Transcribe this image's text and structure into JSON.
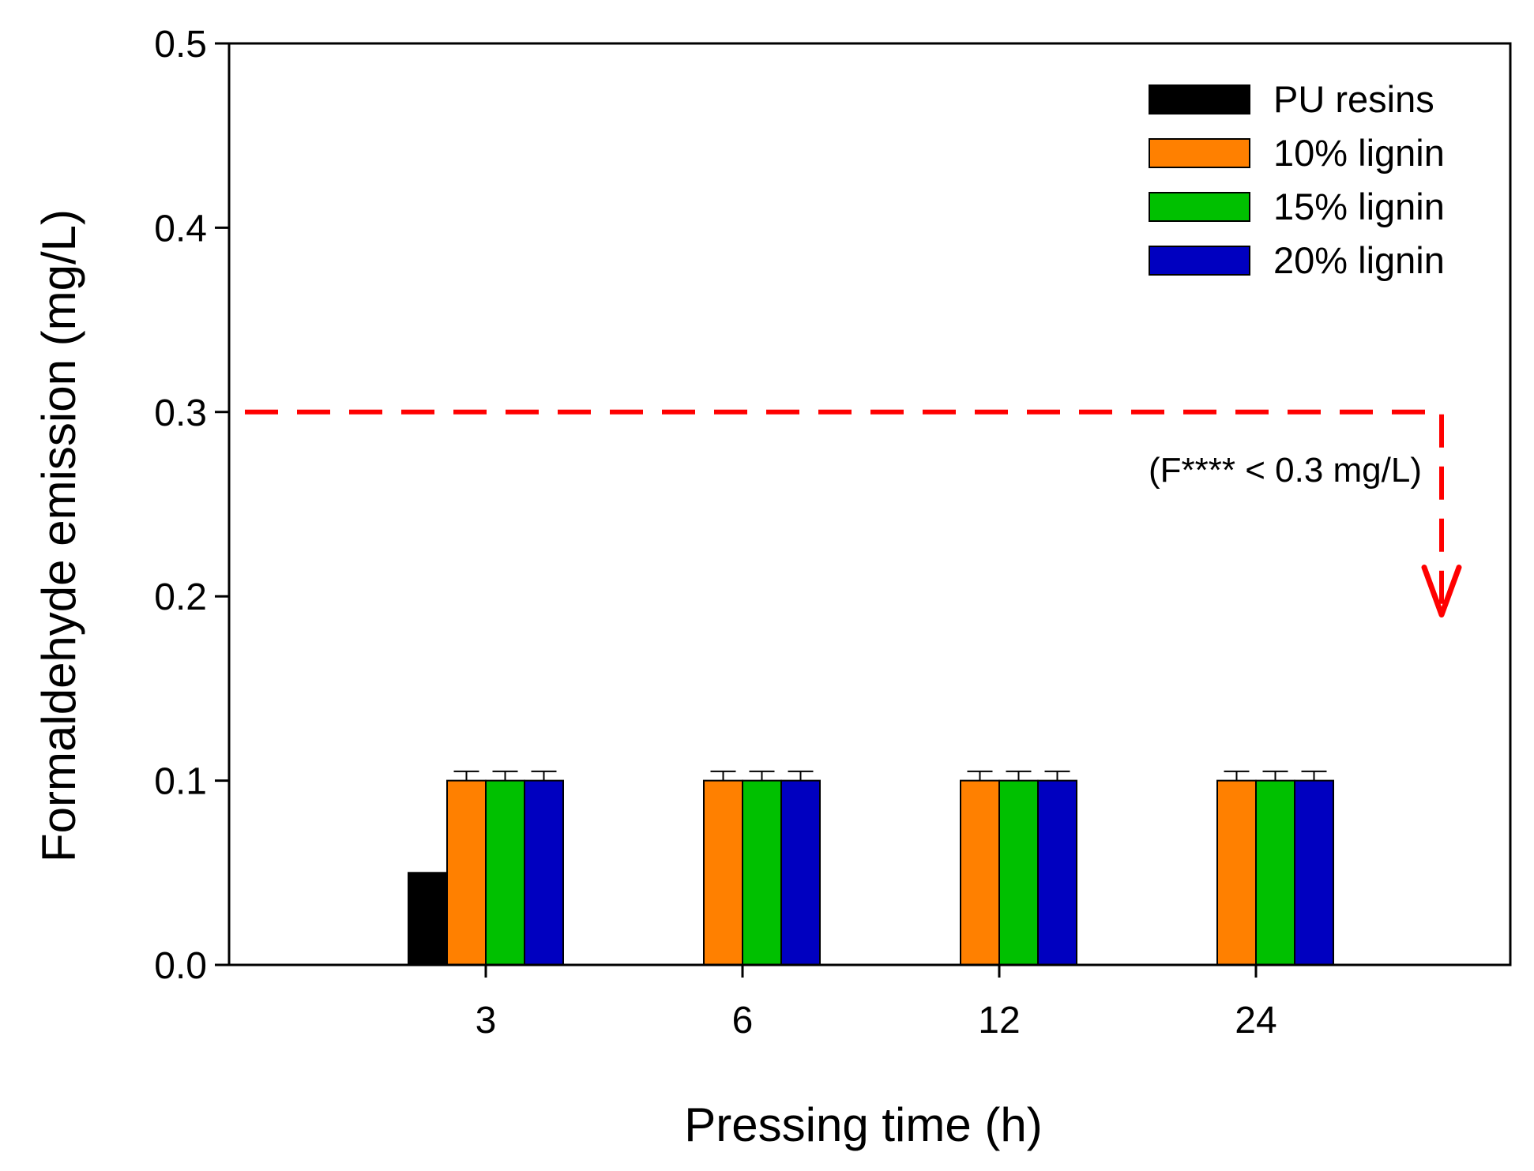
{
  "chart_data": {
    "type": "bar",
    "title": "",
    "xlabel": "Pressing time (h)",
    "ylabel": "Formaldehyde emission (mg/L)",
    "categories": [
      "3",
      "6",
      "12",
      "24"
    ],
    "ylim": [
      0,
      0.5
    ],
    "yticks": [
      "0.0",
      "0.1",
      "0.2",
      "0.3",
      "0.4",
      "0.5"
    ],
    "grid": false,
    "legend_position": "top-right",
    "series": [
      {
        "name": "PU resins",
        "color": "#000000",
        "values": [
          0.05,
          null,
          null,
          null
        ],
        "errors": [
          null,
          null,
          null,
          null
        ]
      },
      {
        "name": "10% lignin",
        "color": "#ff8000",
        "values": [
          0.1,
          0.1,
          0.1,
          0.1
        ],
        "errors": [
          0.005,
          0.005,
          0.005,
          0.005
        ]
      },
      {
        "name": "15% lignin",
        "color": "#00c000",
        "values": [
          0.1,
          0.1,
          0.1,
          0.1
        ],
        "errors": [
          0.005,
          0.005,
          0.005,
          0.005
        ]
      },
      {
        "name": "20% lignin",
        "color": "#0000c0",
        "values": [
          0.1,
          0.1,
          0.1,
          0.1
        ],
        "errors": [
          0.005,
          0.005,
          0.005,
          0.005
        ]
      }
    ],
    "threshold": {
      "value": 0.3,
      "label": "(F**** < 0.3 mg/L)",
      "color": "#ff0000",
      "arrow_to": 0.19
    }
  }
}
